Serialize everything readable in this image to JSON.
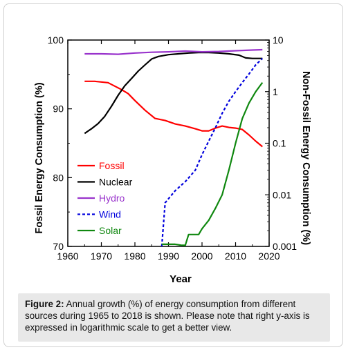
{
  "caption": {
    "label": "Figure 2:",
    "text": " Annual growth (%) of energy consumption from different sources during 1965 to 2018 is shown. Please note that right y-axis is expressed in logarithmic scale to get a better view."
  },
  "chart_data": {
    "type": "line",
    "xlabel": "Year",
    "ylabel_left": "Fossil Energy Consumption (%)",
    "ylabel_right": "Non-Fossil Energy Consumption (%)",
    "xlim": [
      1960,
      2020
    ],
    "ylim_left": [
      70,
      100
    ],
    "ylim_right": [
      0.001,
      10
    ],
    "right_scale": "log",
    "x_ticks": [
      "1960",
      "1970",
      "1980",
      "1990",
      "2000",
      "2010",
      "2020"
    ],
    "y_ticks_left": [
      "70",
      "80",
      "90",
      "100"
    ],
    "y_ticks_right": [
      "0.001",
      "0.01",
      "0.1",
      "1",
      "10"
    ],
    "legend_position": "lower-left",
    "grid": false,
    "series": [
      {
        "name": "Fossil",
        "axis": "left",
        "color": "#ff0000",
        "style": "solid",
        "x": [
          1965,
          1968,
          1972,
          1974,
          1976,
          1978,
          1980,
          1983,
          1986,
          1989,
          1992,
          1995,
          1998,
          2000,
          2002,
          2004,
          2006,
          2008,
          2010,
          2012,
          2014,
          2016,
          2018
        ],
        "y": [
          94.0,
          94.0,
          93.8,
          93.3,
          92.8,
          92.2,
          91.2,
          89.8,
          88.6,
          88.3,
          87.8,
          87.5,
          87.1,
          86.8,
          86.8,
          87.2,
          87.5,
          87.3,
          87.2,
          87.0,
          86.2,
          85.3,
          84.5
        ]
      },
      {
        "name": "Nuclear",
        "axis": "right",
        "color": "#000000",
        "style": "solid",
        "x": [
          1965,
          1967,
          1969,
          1971,
          1973,
          1975,
          1977,
          1979,
          1981,
          1983,
          1985,
          1987,
          1990,
          1993,
          1996,
          1999,
          2002,
          2005,
          2008,
          2011,
          2013,
          2015,
          2018
        ],
        "y": [
          0.155,
          0.19,
          0.24,
          0.33,
          0.52,
          0.85,
          1.3,
          1.8,
          2.5,
          3.3,
          4.3,
          4.8,
          5.2,
          5.4,
          5.6,
          5.7,
          5.7,
          5.6,
          5.4,
          5.1,
          4.5,
          4.4,
          4.4
        ]
      },
      {
        "name": "Hydro",
        "axis": "right",
        "color": "#9933cc",
        "style": "solid",
        "x": [
          1965,
          1970,
          1975,
          1980,
          1985,
          1990,
          1995,
          2000,
          2005,
          2010,
          2015,
          2018
        ],
        "y": [
          5.4,
          5.4,
          5.3,
          5.6,
          5.8,
          5.9,
          6.1,
          5.9,
          6.0,
          6.2,
          6.4,
          6.5
        ]
      },
      {
        "name": "Wind",
        "axis": "right",
        "color": "#0000dd",
        "style": "dashed",
        "x": [
          1988,
          1989,
          1992,
          1995,
          1998,
          2000,
          2002,
          2004,
          2006,
          2008,
          2010,
          2012,
          2014,
          2016,
          2018
        ],
        "y": [
          0.001,
          0.007,
          0.012,
          0.018,
          0.03,
          0.06,
          0.11,
          0.2,
          0.38,
          0.65,
          1.0,
          1.5,
          2.2,
          3.3,
          4.4
        ]
      },
      {
        "name": "Solar",
        "axis": "right",
        "color": "#108810",
        "style": "solid",
        "x": [
          1988,
          1990,
          1992,
          1994,
          1995,
          1996,
          1998,
          1999,
          2000,
          2002,
          2004,
          2006,
          2008,
          2010,
          2012,
          2014,
          2016,
          2018
        ],
        "y": [
          0.0011,
          0.0011,
          0.0011,
          0.00105,
          0.00105,
          0.0017,
          0.0017,
          0.0017,
          0.0022,
          0.0032,
          0.0055,
          0.01,
          0.03,
          0.1,
          0.3,
          0.6,
          1.0,
          1.5
        ]
      }
    ]
  }
}
